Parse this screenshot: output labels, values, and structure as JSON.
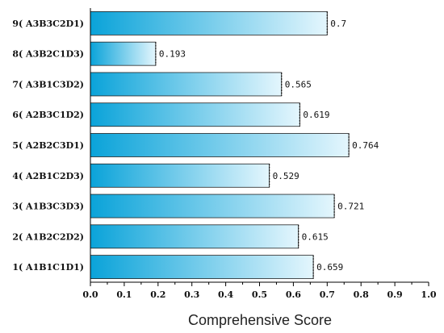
{
  "chart_data": {
    "type": "bar",
    "orientation": "horizontal",
    "title": "",
    "xlabel": "Comprehensive Score",
    "ylabel": "",
    "xlim": [
      0.0,
      1.0
    ],
    "xticks": [
      "0.0",
      "0.1",
      "0.2",
      "0.3",
      "0.4",
      "0.5",
      "0.6",
      "0.7",
      "0.8",
      "0.9",
      "1.0"
    ],
    "grid": false,
    "legend": "none",
    "categories": [
      "1( A1B1C1D1)",
      "2( A1B2C2D2)",
      "3( A1B3C3D3)",
      "4( A2B1C2D3)",
      "5( A2B2C3D1)",
      "6( A2B3C1D2)",
      "7( A3B1C3D2)",
      "8( A3B2C1D3)",
      "9( A3B3C2D1)"
    ],
    "values": [
      0.659,
      0.615,
      0.721,
      0.529,
      0.764,
      0.619,
      0.565,
      0.193,
      0.7
    ],
    "value_labels": [
      "0.659",
      "0.615",
      "0.721",
      "0.529",
      "0.764",
      "0.619",
      "0.565",
      "0.193",
      "0.7"
    ],
    "colors": {
      "bar_start": "#0aa3d9",
      "bar_end": "#e4f6fd",
      "bar_border": "#222222",
      "axis": "#000000"
    }
  }
}
